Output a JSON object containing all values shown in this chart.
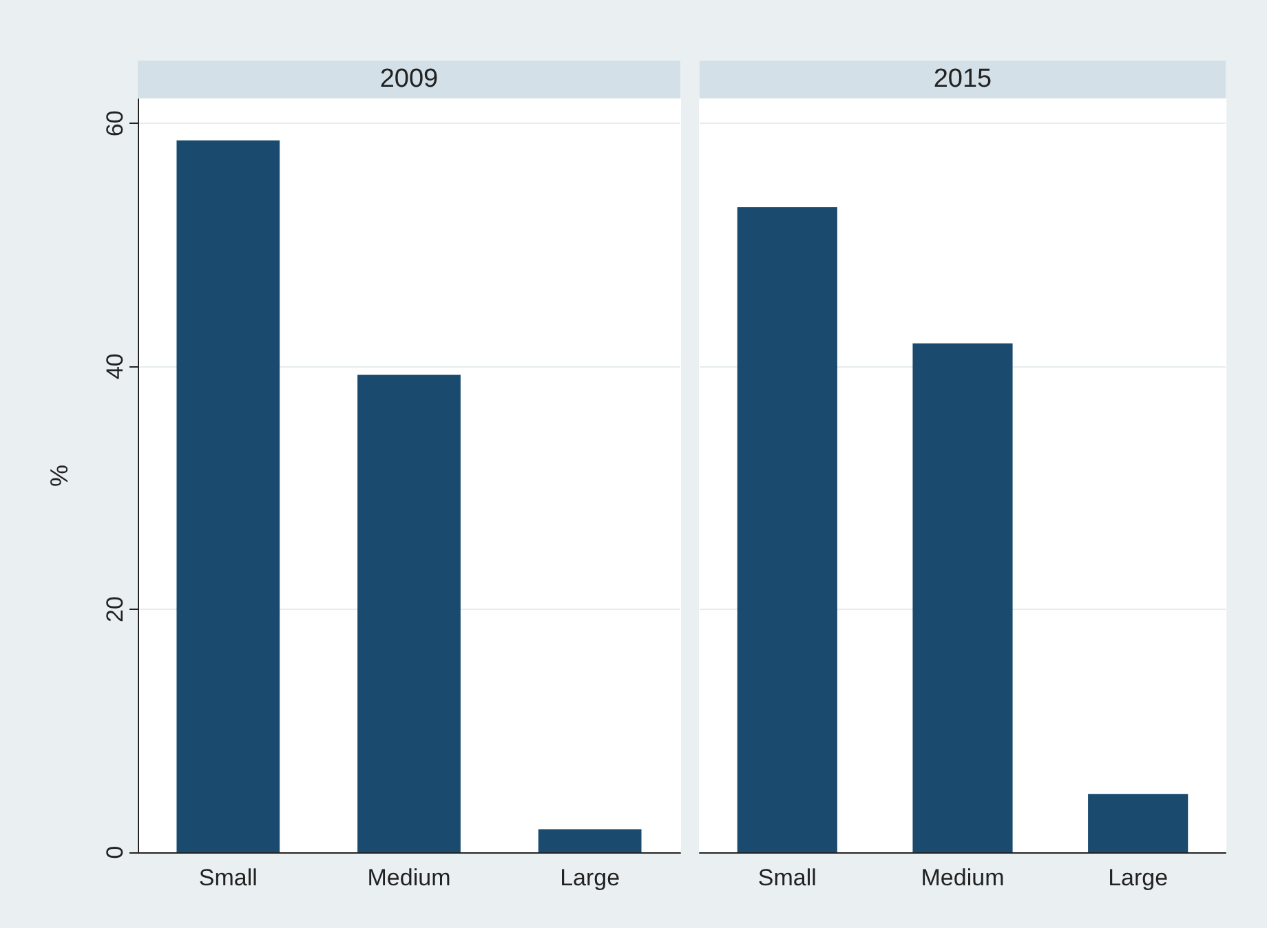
{
  "chart_data": [
    {
      "type": "bar",
      "title": "2009",
      "ylabel": "%",
      "categories": [
        "Small",
        "Medium",
        "Large"
      ],
      "values": [
        58.6,
        39.3,
        1.9
      ],
      "color": "#1a4a6e",
      "ylim": [
        0,
        62
      ],
      "yticks": [
        0,
        20,
        40,
        60
      ],
      "grid": "y"
    },
    {
      "type": "bar",
      "title": "2015",
      "categories": [
        "Small",
        "Medium",
        "Large"
      ],
      "values": [
        53.1,
        41.9,
        4.8
      ],
      "color": "#1a4a6e",
      "ylim": [
        0,
        62
      ],
      "yticks": [
        0,
        20,
        40,
        60
      ],
      "grid": "y",
      "tick_labels": "x"
    }
  ]
}
